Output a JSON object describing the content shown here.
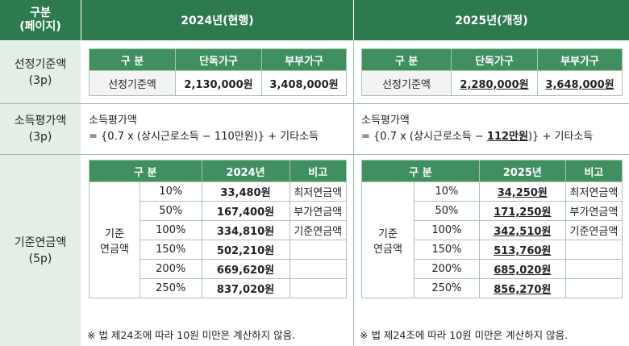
{
  "header": {
    "category_line1": "구분",
    "category_line2": "(페이지)",
    "col_2024": "2024년(현행)",
    "col_2025": "2025년(개정)"
  },
  "rows": {
    "threshold": {
      "label": "선정기준액",
      "page": "(3p)"
    },
    "income": {
      "label": "소득평가액",
      "page": "(3p)"
    },
    "pension": {
      "label": "기준연금액",
      "page": "(5p)"
    }
  },
  "threshold_table": {
    "headers": [
      "구 분",
      "단독가구",
      "부부가구"
    ],
    "left": {
      "row_label": "선정기준액",
      "single": "2,130,000원",
      "couple": "3,408,000원"
    },
    "right": {
      "row_label": "선정기준액",
      "single": "2,280,000원",
      "couple": "3,648,000원"
    }
  },
  "income_formula": {
    "left": {
      "title": "소득평가액",
      "line2_pre": "= {0.7 x (상시근로소득 − ",
      "amount": "110만원",
      "line2_post": ")} + 기타소득"
    },
    "right": {
      "title": "소득평가액",
      "line2_pre": "= {0.7 x (상시근로소득 − ",
      "amount": "112만원",
      "line2_post": ")} + 기타소득"
    }
  },
  "pension_table": {
    "left": {
      "headers": [
        "구 분",
        "2024년",
        "비고"
      ],
      "group_line1": "기준",
      "group_line2": "연금액",
      "rows": [
        {
          "pct": "10%",
          "amount": "33,480원",
          "note": "최저연금액"
        },
        {
          "pct": "50%",
          "amount": "167,400원",
          "note": "부가연금액"
        },
        {
          "pct": "100%",
          "amount": "334,810원",
          "note": "기준연금액"
        },
        {
          "pct": "150%",
          "amount": "502,210원",
          "note": ""
        },
        {
          "pct": "200%",
          "amount": "669,620원",
          "note": ""
        },
        {
          "pct": "250%",
          "amount": "837,020원",
          "note": ""
        }
      ],
      "footnote": "※ 법 제24조에 따라 10원 미만은 계산하지 않음."
    },
    "right": {
      "headers": [
        "구 분",
        "2025년",
        "비고"
      ],
      "group_line1": "기준",
      "group_line2": "연금액",
      "rows": [
        {
          "pct": "10%",
          "amount": "34,250원",
          "note": "최저연금액"
        },
        {
          "pct": "50%",
          "amount": "171,250원",
          "note": "부가연금액"
        },
        {
          "pct": "100%",
          "amount": "342,510원",
          "note": "기준연금액"
        },
        {
          "pct": "150%",
          "amount": "513,760원",
          "note": ""
        },
        {
          "pct": "200%",
          "amount": "685,020원",
          "note": ""
        },
        {
          "pct": "250%",
          "amount": "856,270원",
          "note": ""
        }
      ],
      "footnote": "※ 법 제24조에 따라 10원 미만은 계산하지 않음."
    }
  },
  "colors": {
    "header_green": "#2d7a4e",
    "table_head_green": "#3f8f60",
    "label_bg": "#e3efe6"
  }
}
